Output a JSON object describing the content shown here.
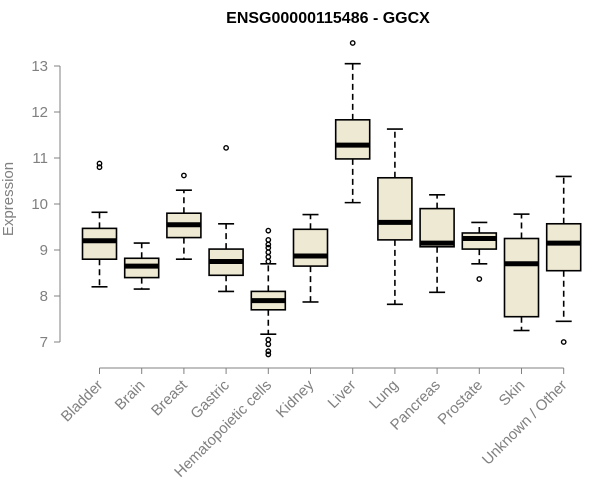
{
  "chart_data": {
    "type": "box",
    "title": "ENSG00000115486 - GGCX",
    "xlabel": "",
    "ylabel": "Expression",
    "ylim": [
      6.7,
      13.6
    ],
    "yticks": [
      7,
      8,
      9,
      10,
      11,
      12,
      13
    ],
    "grid": false,
    "legend": "none",
    "categories": [
      "Bladder",
      "Brain",
      "Breast",
      "Gastric",
      "Hematopoietic cells",
      "Kidney",
      "Liver",
      "Lung",
      "Pancreas",
      "Prostate",
      "Skin",
      "Unknown / Other"
    ],
    "boxes": [
      {
        "category": "Bladder",
        "lower_whisker": 8.2,
        "q1": 8.8,
        "median": 9.2,
        "q3": 9.47,
        "upper_whisker": 9.82,
        "outliers": [
          10.8,
          10.88
        ]
      },
      {
        "category": "Brain",
        "lower_whisker": 8.15,
        "q1": 8.4,
        "median": 8.65,
        "q3": 8.82,
        "upper_whisker": 9.15,
        "outliers": []
      },
      {
        "category": "Breast",
        "lower_whisker": 8.8,
        "q1": 9.27,
        "median": 9.55,
        "q3": 9.8,
        "upper_whisker": 10.3,
        "outliers": [
          10.62
        ]
      },
      {
        "category": "Gastric",
        "lower_whisker": 8.1,
        "q1": 8.45,
        "median": 8.75,
        "q3": 9.02,
        "upper_whisker": 9.57,
        "outliers": [
          11.22
        ]
      },
      {
        "category": "Hematopoietic cells",
        "lower_whisker": 7.17,
        "q1": 7.7,
        "median": 7.9,
        "q3": 8.1,
        "upper_whisker": 8.7,
        "outliers": [
          8.75,
          8.85,
          8.95,
          9.05,
          9.12,
          9.22,
          9.42,
          7.05,
          6.95,
          6.8,
          6.73
        ]
      },
      {
        "category": "Kidney",
        "lower_whisker": 7.87,
        "q1": 8.65,
        "median": 8.87,
        "q3": 9.45,
        "upper_whisker": 9.77,
        "outliers": []
      },
      {
        "category": "Liver",
        "lower_whisker": 10.03,
        "q1": 10.98,
        "median": 11.28,
        "q3": 11.83,
        "upper_whisker": 13.05,
        "outliers": [
          13.5
        ]
      },
      {
        "category": "Lung",
        "lower_whisker": 7.82,
        "q1": 9.22,
        "median": 9.6,
        "q3": 10.57,
        "upper_whisker": 11.63,
        "outliers": []
      },
      {
        "category": "Pancreas",
        "lower_whisker": 8.08,
        "q1": 9.07,
        "median": 9.15,
        "q3": 9.9,
        "upper_whisker": 10.2,
        "outliers": []
      },
      {
        "category": "Prostate",
        "lower_whisker": 8.7,
        "q1": 9.02,
        "median": 9.25,
        "q3": 9.37,
        "upper_whisker": 9.6,
        "outliers": [
          8.37
        ]
      },
      {
        "category": "Skin",
        "lower_whisker": 7.25,
        "q1": 7.55,
        "median": 8.7,
        "q3": 9.25,
        "upper_whisker": 9.78,
        "outliers": []
      },
      {
        "category": "Unknown / Other",
        "lower_whisker": 7.45,
        "q1": 8.55,
        "median": 9.15,
        "q3": 9.57,
        "upper_whisker": 10.6,
        "outliers": [
          7.0
        ]
      }
    ]
  },
  "colors": {
    "box_fill": "#eee9d3",
    "box_stroke": "#000000",
    "axis": "#808080",
    "text": "#808080",
    "title": "#000000"
  }
}
